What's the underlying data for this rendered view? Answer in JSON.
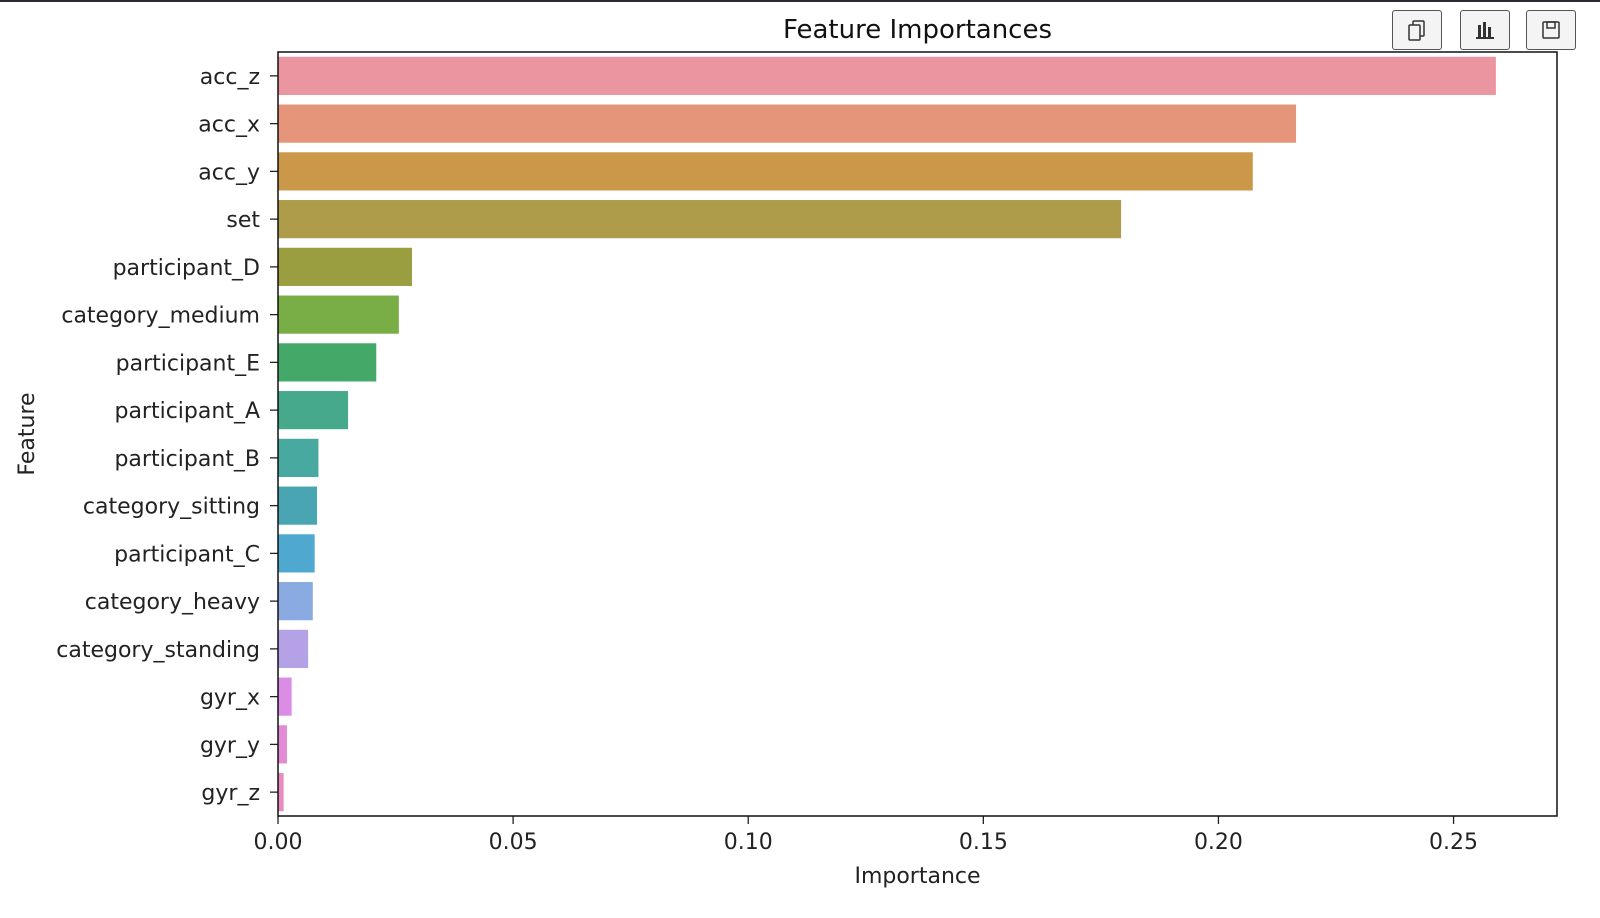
{
  "toolbar": {
    "buttons": [
      {
        "name": "copy-button",
        "icon": "copy-icon"
      },
      {
        "name": "chart-button",
        "icon": "bar-chart-icon"
      },
      {
        "name": "save-button",
        "icon": "save-icon"
      }
    ]
  },
  "chart_data": {
    "type": "bar",
    "orientation": "horizontal",
    "title": "Feature Importances",
    "xlabel": "Importance",
    "ylabel": "Feature",
    "xlim": [
      0,
      0.272
    ],
    "xticks": [
      0.0,
      0.05,
      0.1,
      0.15,
      0.2,
      0.25
    ],
    "xtick_labels": [
      "0.00",
      "0.05",
      "0.10",
      "0.15",
      "0.20",
      "0.25"
    ],
    "grid": false,
    "categories": [
      "acc_z",
      "acc_x",
      "acc_y",
      "set",
      "participant_D",
      "category_medium",
      "participant_E",
      "participant_A",
      "participant_B",
      "category_sitting",
      "participant_C",
      "category_heavy",
      "category_standing",
      "gyr_x",
      "gyr_y",
      "gyr_z"
    ],
    "values": [
      0.259,
      0.2165,
      0.2073,
      0.1793,
      0.0285,
      0.0257,
      0.0209,
      0.0149,
      0.0086,
      0.0083,
      0.0078,
      0.0074,
      0.0064,
      0.0029,
      0.0019,
      0.0012
    ],
    "colors": [
      "#eb95a0",
      "#e59579",
      "#cb9749",
      "#ae9c4b",
      "#9a9e41",
      "#79ad46",
      "#43a868",
      "#47a98c",
      "#47a99f",
      "#4aa5b3",
      "#4ea8cf",
      "#8aabe1",
      "#b5a2e6",
      "#db8de6",
      "#e38ad6",
      "#e98bbc"
    ]
  }
}
